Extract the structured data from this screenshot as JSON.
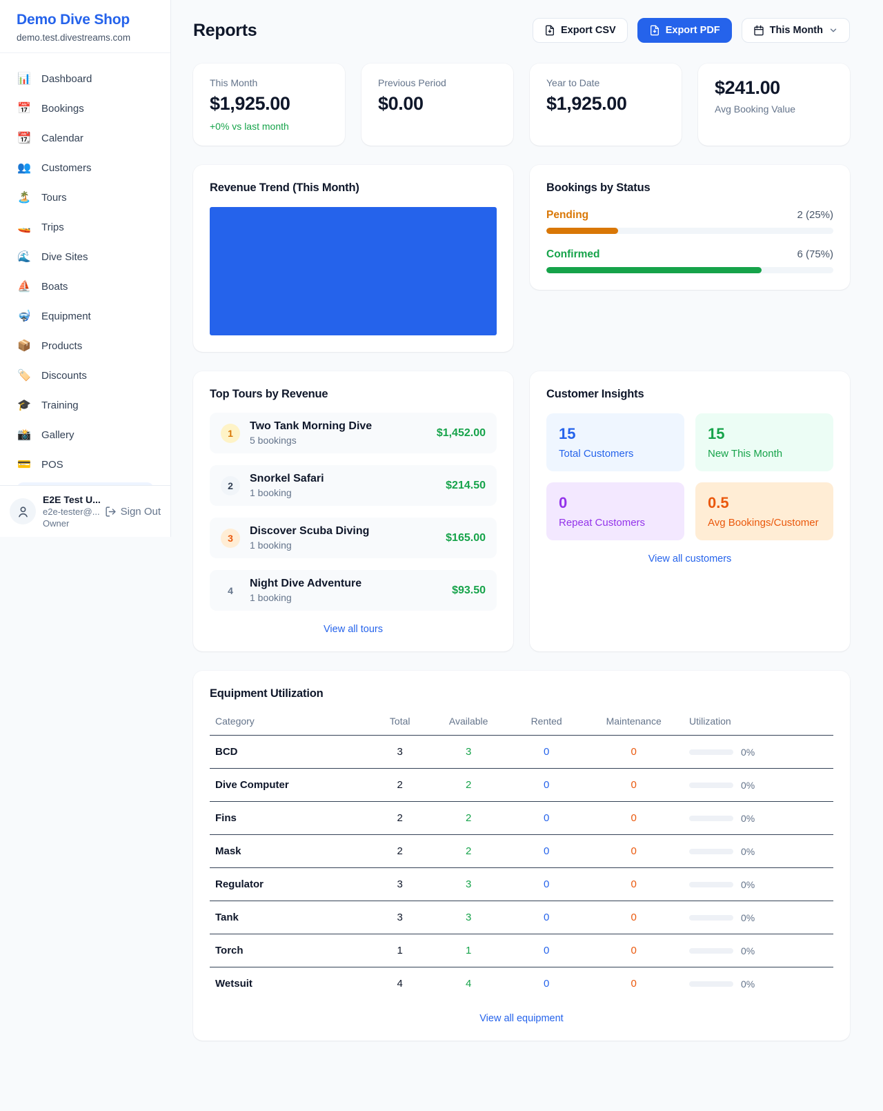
{
  "colors": {
    "accent": "#2563eb",
    "positive": "#16a34a",
    "pending": "#d97706",
    "maintenance": "#ea580c",
    "repeat": "#9333ea"
  },
  "sidebar": {
    "brand": {
      "name": "Demo Dive Shop",
      "domain": "demo.test.divestreams.com"
    },
    "items": [
      {
        "glyph": "📊",
        "label": "Dashboard"
      },
      {
        "glyph": "📅",
        "label": "Bookings"
      },
      {
        "glyph": "📆",
        "label": "Calendar"
      },
      {
        "glyph": "👥",
        "label": "Customers"
      },
      {
        "glyph": "🏝️",
        "label": "Tours"
      },
      {
        "glyph": "🚤",
        "label": "Trips"
      },
      {
        "glyph": "🌊",
        "label": "Dive Sites"
      },
      {
        "glyph": "⛵",
        "label": "Boats"
      },
      {
        "glyph": "🤿",
        "label": "Equipment"
      },
      {
        "glyph": "📦",
        "label": "Products"
      },
      {
        "glyph": "🏷️",
        "label": "Discounts"
      },
      {
        "glyph": "🎓",
        "label": "Training"
      },
      {
        "glyph": "📸",
        "label": "Gallery"
      },
      {
        "glyph": "💳",
        "label": "POS"
      }
    ],
    "user": {
      "name": "E2E Test U...",
      "email": "e2e-tester@...",
      "role": "Owner",
      "signout": "Sign Out"
    }
  },
  "header": {
    "title": "Reports",
    "export_csv": "Export CSV",
    "export_pdf": "Export PDF",
    "period": "This Month"
  },
  "stats": [
    {
      "label": "This Month",
      "value": "$1,925.00",
      "delta": "+0% vs last month"
    },
    {
      "label": "Previous Period",
      "value": "$0.00"
    },
    {
      "label": "Year to Date",
      "value": "$1,925.00"
    },
    {
      "label": "Avg Booking Value",
      "value": "$241.00"
    }
  ],
  "revenue_trend": {
    "title": "Revenue Trend (This Month)",
    "bar_color": "#2563eb"
  },
  "bookings_by_status": {
    "title": "Bookings by Status",
    "rows": [
      {
        "label": "Pending",
        "value": "2 (25%)",
        "pct": 25,
        "color": "#d97706"
      },
      {
        "label": "Confirmed",
        "value": "6 (75%)",
        "pct": 75,
        "color": "#16a34a"
      }
    ]
  },
  "top_tours": {
    "title": "Top Tours by Revenue",
    "link": "View all tours",
    "items": [
      {
        "rank": "1",
        "name": "Two Tank Morning Dive",
        "meta": "5 bookings",
        "amount": "$1,452.00",
        "rank_bg": "#fef3c7",
        "rank_color": "#d97706"
      },
      {
        "rank": "2",
        "name": "Snorkel Safari",
        "meta": "1 booking",
        "amount": "$214.50",
        "rank_bg": "#f1f5f9",
        "rank_color": "#334155"
      },
      {
        "rank": "3",
        "name": "Discover Scuba Diving",
        "meta": "1 booking",
        "amount": "$165.00",
        "rank_bg": "#ffedd5",
        "rank_color": "#ea580c"
      },
      {
        "rank": "4",
        "name": "Night Dive Adventure",
        "meta": "1 booking",
        "amount": "$93.50",
        "rank_bg": "transparent",
        "rank_color": "#64748b"
      }
    ]
  },
  "customer_insights": {
    "title": "Customer Insights",
    "link": "View all customers",
    "tiles": [
      {
        "value": "15",
        "label": "Total Customers",
        "bg": "#eff6ff",
        "color": "#2563eb"
      },
      {
        "value": "15",
        "label": "New This Month",
        "bg": "#ecfdf5",
        "color": "#16a34a"
      },
      {
        "value": "0",
        "label": "Repeat Customers",
        "bg": "#f3e8ff",
        "color": "#9333ea"
      },
      {
        "value": "0.5",
        "label": "Avg Bookings/Customer",
        "bg": "#ffedd5",
        "color": "#ea580c"
      }
    ]
  },
  "equipment": {
    "title": "Equipment Utilization",
    "link": "View all equipment",
    "columns": [
      "Category",
      "Total",
      "Available",
      "Rented",
      "Maintenance",
      "Utilization"
    ],
    "rows": [
      {
        "category": "BCD",
        "total": "3",
        "available": "3",
        "rented": "0",
        "maintenance": "0",
        "utilization": "0%",
        "util_pct": 0
      },
      {
        "category": "Dive Computer",
        "total": "2",
        "available": "2",
        "rented": "0",
        "maintenance": "0",
        "utilization": "0%",
        "util_pct": 0
      },
      {
        "category": "Fins",
        "total": "2",
        "available": "2",
        "rented": "0",
        "maintenance": "0",
        "utilization": "0%",
        "util_pct": 0
      },
      {
        "category": "Mask",
        "total": "2",
        "available": "2",
        "rented": "0",
        "maintenance": "0",
        "utilization": "0%",
        "util_pct": 0
      },
      {
        "category": "Regulator",
        "total": "3",
        "available": "3",
        "rented": "0",
        "maintenance": "0",
        "utilization": "0%",
        "util_pct": 0
      },
      {
        "category": "Tank",
        "total": "3",
        "available": "3",
        "rented": "0",
        "maintenance": "0",
        "utilization": "0%",
        "util_pct": 0
      },
      {
        "category": "Torch",
        "total": "1",
        "available": "1",
        "rented": "0",
        "maintenance": "0",
        "utilization": "0%",
        "util_pct": 0
      },
      {
        "category": "Wetsuit",
        "total": "4",
        "available": "4",
        "rented": "0",
        "maintenance": "0",
        "utilization": "0%",
        "util_pct": 0
      }
    ]
  }
}
